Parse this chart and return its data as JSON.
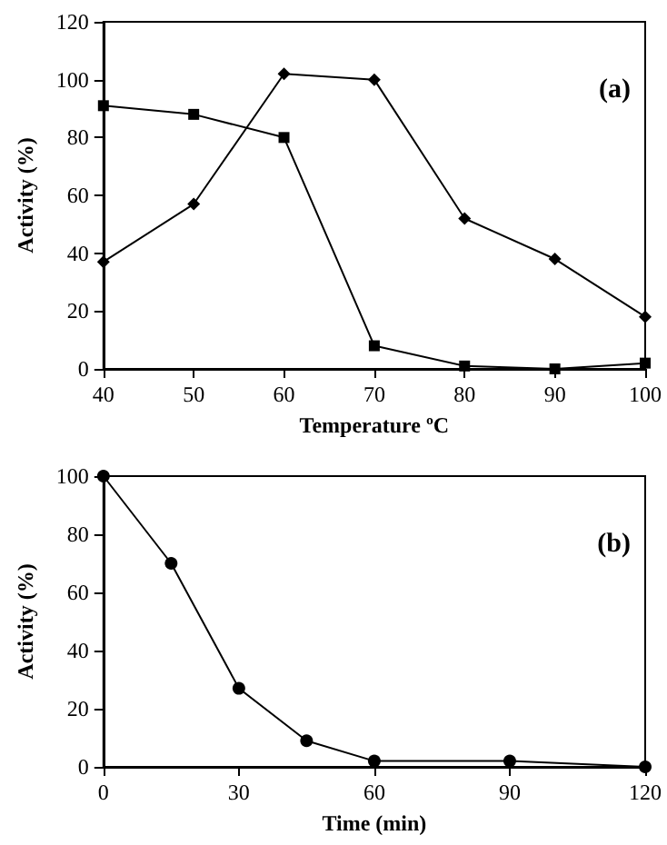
{
  "chart_data": [
    {
      "type": "line",
      "xlabel": "Temperature ºC",
      "ylabel": "Activity (%)",
      "annotations": [
        "(a)"
      ],
      "x": [
        40,
        50,
        60,
        70,
        80,
        90,
        100
      ],
      "xlim": [
        40,
        100
      ],
      "xticks": [
        40,
        50,
        60,
        70,
        80,
        90,
        100
      ],
      "ylim": [
        0,
        120
      ],
      "yticks": [
        0,
        20,
        40,
        60,
        80,
        100,
        120
      ],
      "grid": false,
      "series": [
        {
          "color": "#000000",
          "marker": "diamond",
          "values": [
            37,
            57,
            102,
            100,
            52,
            38,
            18
          ]
        },
        {
          "color": "#000000",
          "marker": "square",
          "values": [
            91,
            88,
            80,
            8,
            1,
            0,
            2
          ]
        }
      ]
    },
    {
      "type": "line",
      "xlabel": "Time (min)",
      "ylabel": "Activity (%)",
      "annotations": [
        "(b)"
      ],
      "x": [
        0,
        15,
        30,
        45,
        60,
        90,
        120
      ],
      "xlim": [
        0,
        120
      ],
      "xticks": [
        0,
        30,
        60,
        90,
        120
      ],
      "ylim": [
        0,
        100
      ],
      "yticks": [
        0,
        20,
        40,
        60,
        80,
        100
      ],
      "grid": false,
      "series": [
        {
          "color": "#000000",
          "marker": "circle",
          "values": [
            100,
            70,
            27,
            9,
            2,
            2,
            0
          ]
        }
      ]
    }
  ]
}
